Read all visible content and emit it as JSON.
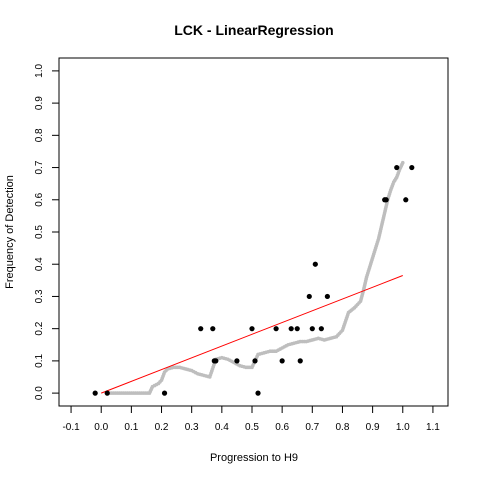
{
  "chart_data": {
    "type": "scatter",
    "title": "LCK - LinearRegression",
    "xlabel": "Progression to H9",
    "ylabel": "Frequency of Detection",
    "xlim": [
      -0.14,
      1.15
    ],
    "ylim": [
      -0.04,
      1.04
    ],
    "xticks": [
      "-0.1",
      "0.0",
      "0.1",
      "0.2",
      "0.3",
      "0.4",
      "0.5",
      "0.6",
      "0.7",
      "0.8",
      "0.9",
      "1.0",
      "1.1"
    ],
    "yticks": [
      "0.0",
      "0.1",
      "0.2",
      "0.3",
      "0.4",
      "0.5",
      "0.6",
      "0.7",
      "0.8",
      "0.9",
      "1.0"
    ],
    "grid": false,
    "colors": {
      "points": "#000000",
      "smooth": "#bebebe",
      "fit": "#ff0000"
    },
    "fit_line": {
      "x": [
        0.0,
        1.0
      ],
      "y": [
        0.0,
        0.365
      ]
    },
    "smooth_curve": {
      "x": [
        0.02,
        0.06,
        0.1,
        0.14,
        0.16,
        0.17,
        0.19,
        0.2,
        0.21,
        0.22,
        0.24,
        0.26,
        0.28,
        0.3,
        0.32,
        0.34,
        0.36,
        0.38,
        0.4,
        0.42,
        0.44,
        0.46,
        0.48,
        0.5,
        0.52,
        0.54,
        0.56,
        0.58,
        0.6,
        0.62,
        0.64,
        0.66,
        0.68,
        0.7,
        0.72,
        0.74,
        0.76,
        0.78,
        0.8,
        0.82,
        0.84,
        0.86,
        0.87,
        0.88,
        0.89,
        0.9,
        0.91,
        0.92,
        0.93,
        0.94,
        0.95,
        0.96,
        0.97,
        0.98,
        0.99,
        1.0
      ],
      "y": [
        0.0,
        0.0,
        0.0,
        0.0,
        0.0,
        0.02,
        0.03,
        0.04,
        0.065,
        0.075,
        0.08,
        0.08,
        0.075,
        0.07,
        0.06,
        0.055,
        0.05,
        0.105,
        0.11,
        0.105,
        0.095,
        0.085,
        0.08,
        0.08,
        0.12,
        0.125,
        0.13,
        0.13,
        0.14,
        0.15,
        0.155,
        0.16,
        0.16,
        0.165,
        0.17,
        0.165,
        0.17,
        0.175,
        0.195,
        0.25,
        0.265,
        0.285,
        0.32,
        0.36,
        0.39,
        0.42,
        0.45,
        0.48,
        0.52,
        0.56,
        0.6,
        0.63,
        0.655,
        0.67,
        0.695,
        0.715
      ]
    },
    "points": {
      "x": [
        -0.02,
        0.02,
        0.21,
        0.33,
        0.37,
        0.375,
        0.38,
        0.45,
        0.5,
        0.51,
        0.52,
        0.58,
        0.6,
        0.63,
        0.65,
        0.66,
        0.69,
        0.7,
        0.71,
        0.73,
        0.75,
        0.94,
        0.945,
        0.98,
        1.01,
        1.03
      ],
      "y": [
        0.0,
        0.0,
        0.0,
        0.2,
        0.2,
        0.1,
        0.1,
        0.1,
        0.2,
        0.1,
        0.0,
        0.2,
        0.1,
        0.2,
        0.2,
        0.1,
        0.3,
        0.2,
        0.4,
        0.2,
        0.3,
        0.6,
        0.6,
        0.7,
        0.6,
        0.7
      ]
    }
  }
}
